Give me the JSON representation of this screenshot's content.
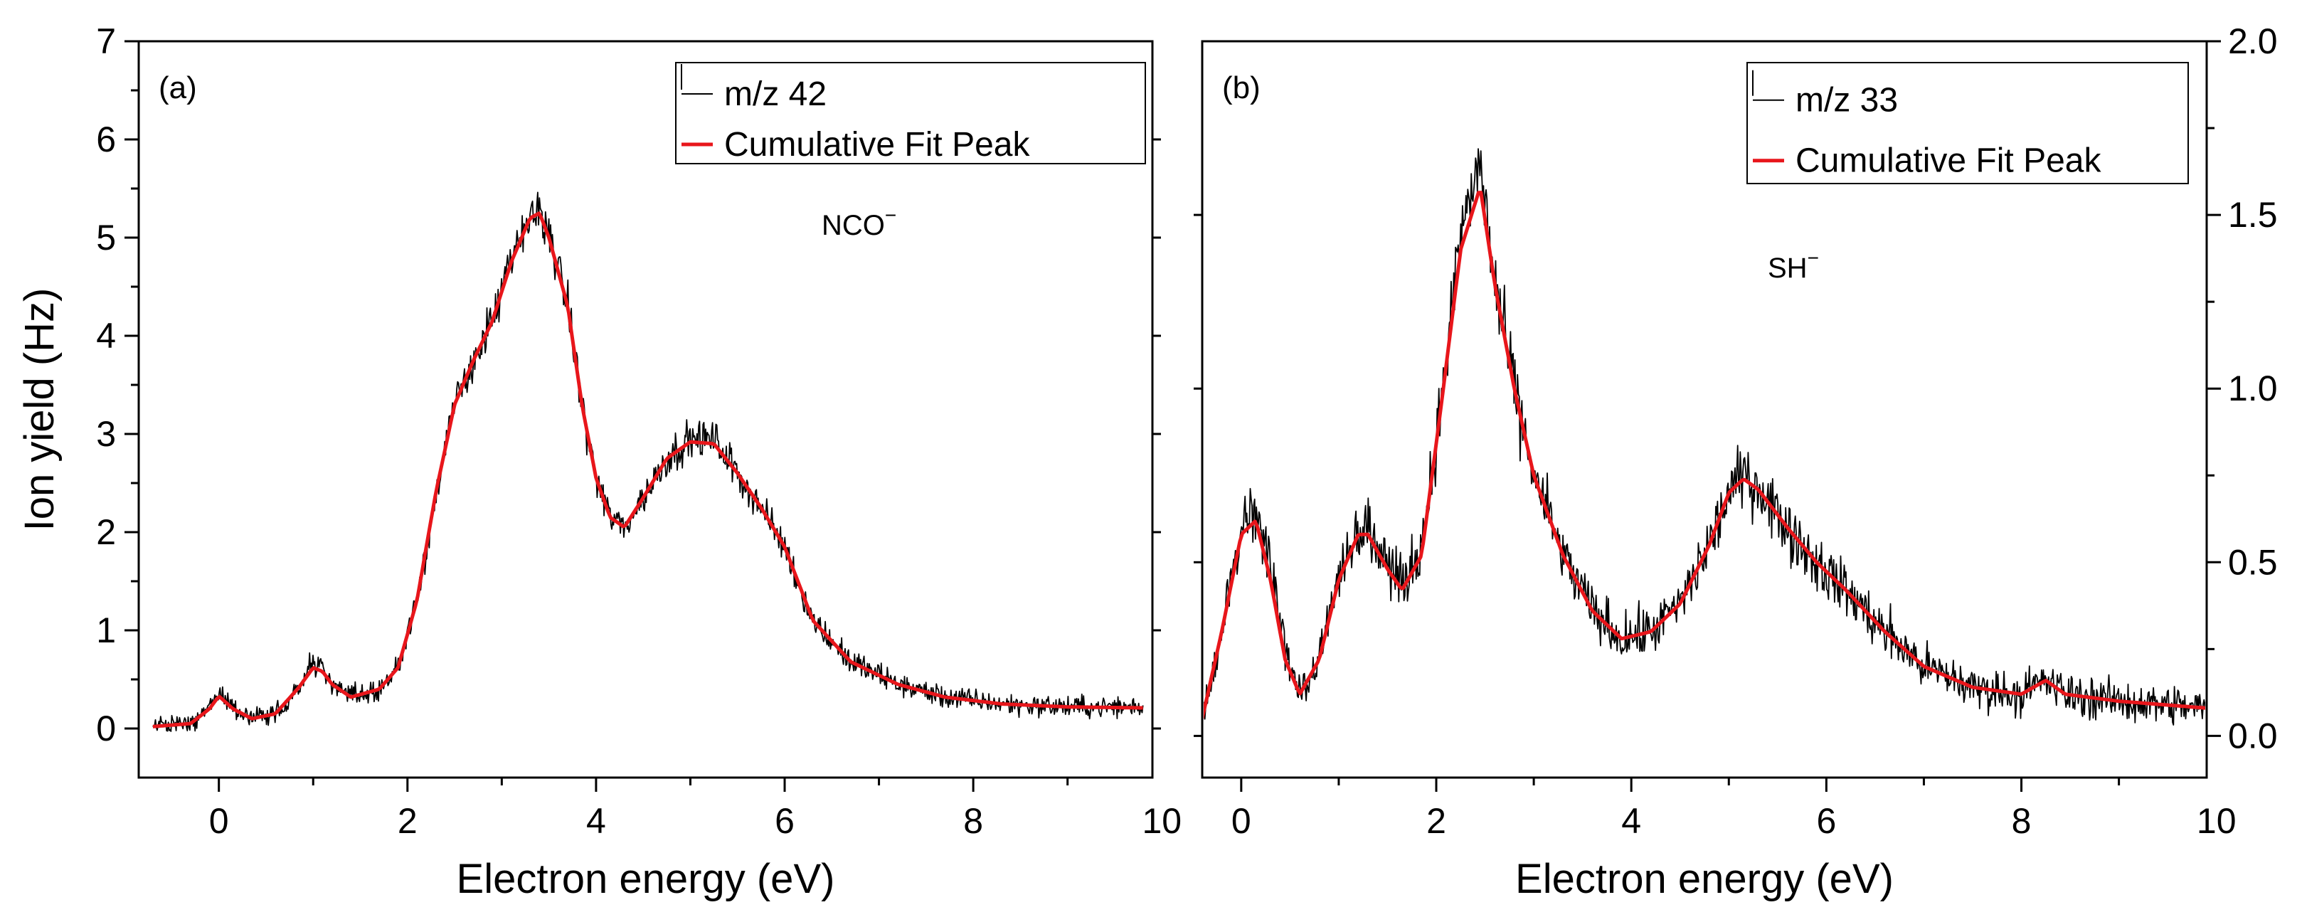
{
  "chart_data": [
    {
      "type": "line",
      "panel_label": "(a)",
      "xlabel": "Electron energy (eV)",
      "ylabel": "Ion yield (Hz)",
      "xlim": [
        -0.85,
        9.9
      ],
      "ylim": [
        -0.5,
        7
      ],
      "y_axis_side": "left",
      "xticks": [
        0,
        2,
        4,
        6,
        8,
        10
      ],
      "xtick_labels": [
        "0",
        "2",
        "4",
        "6",
        "8",
        "10"
      ],
      "yticks": [
        0,
        1,
        2,
        3,
        4,
        5,
        6,
        7
      ],
      "ytick_labels": [
        "0",
        "1",
        "2",
        "3",
        "4",
        "5",
        "6",
        "7"
      ],
      "species": {
        "base": "NCO",
        "charge": "−"
      },
      "legend": [
        "m/z 42",
        "Cumulative Fit Peak"
      ],
      "legend_position": "top-right",
      "series": [
        {
          "name": "m/z 42",
          "color": "#000000",
          "noise_amplitude": 0.14,
          "x": [
            -0.7,
            -0.3,
            -0.1,
            0.0,
            0.15,
            0.35,
            0.6,
            0.85,
            1.0,
            1.1,
            1.2,
            1.4,
            1.7,
            1.9,
            2.1,
            2.3,
            2.5,
            2.7,
            2.9,
            3.1,
            3.3,
            3.4,
            3.5,
            3.7,
            3.85,
            4.0,
            4.15,
            4.3,
            4.5,
            4.75,
            5.0,
            5.25,
            5.5,
            5.75,
            6.0,
            6.3,
            6.7,
            7.2,
            7.7,
            8.3,
            9.0,
            9.8
          ],
          "values": [
            0.03,
            0.05,
            0.2,
            0.38,
            0.22,
            0.1,
            0.15,
            0.42,
            0.68,
            0.6,
            0.45,
            0.32,
            0.4,
            0.62,
            1.35,
            2.35,
            3.3,
            3.75,
            4.15,
            4.75,
            5.2,
            5.3,
            5.05,
            4.3,
            3.3,
            2.55,
            2.15,
            2.05,
            2.35,
            2.75,
            2.95,
            2.95,
            2.6,
            2.25,
            1.85,
            1.1,
            0.68,
            0.45,
            0.32,
            0.25,
            0.22,
            0.22
          ]
        },
        {
          "name": "Cumulative Fit Peak",
          "color": "#e8161b",
          "x": [
            -0.7,
            -0.3,
            -0.1,
            0.0,
            0.15,
            0.35,
            0.6,
            0.85,
            1.0,
            1.1,
            1.2,
            1.4,
            1.7,
            1.9,
            2.1,
            2.3,
            2.5,
            2.7,
            2.9,
            3.1,
            3.3,
            3.4,
            3.5,
            3.7,
            3.85,
            4.0,
            4.15,
            4.3,
            4.5,
            4.75,
            5.0,
            5.25,
            5.5,
            5.75,
            6.0,
            6.3,
            6.7,
            7.2,
            7.7,
            8.3,
            9.0,
            9.8
          ],
          "values": [
            0.02,
            0.05,
            0.2,
            0.33,
            0.2,
            0.1,
            0.15,
            0.42,
            0.62,
            0.58,
            0.45,
            0.32,
            0.4,
            0.62,
            1.3,
            2.4,
            3.3,
            3.75,
            4.15,
            4.75,
            5.2,
            5.25,
            5.0,
            4.3,
            3.3,
            2.55,
            2.15,
            2.05,
            2.35,
            2.75,
            2.92,
            2.9,
            2.6,
            2.25,
            1.85,
            1.1,
            0.68,
            0.45,
            0.32,
            0.25,
            0.22,
            0.21
          ]
        }
      ]
    },
    {
      "type": "line",
      "panel_label": "(b)",
      "xlabel": "Electron energy (eV)",
      "ylabel": "",
      "xlim": [
        -0.4,
        9.9
      ],
      "ylim": [
        -0.12,
        2.0
      ],
      "y_axis_side": "right",
      "xticks": [
        0,
        2,
        4,
        6,
        8,
        10
      ],
      "xtick_labels": [
        "0",
        "2",
        "4",
        "6",
        "8",
        "10"
      ],
      "yticks": [
        0.0,
        0.5,
        1.0,
        1.5,
        2.0
      ],
      "ytick_labels": [
        "0.0",
        "0.5",
        "1.0",
        "1.5",
        "2.0"
      ],
      "species": {
        "base": "SH",
        "charge": "−"
      },
      "legend": [
        "m/z 33",
        "Cumulative Fit Peak"
      ],
      "legend_position": "top-right",
      "series": [
        {
          "name": "m/z 33",
          "color": "#000000",
          "noise_amplitude": 0.07,
          "x": [
            -0.4,
            -0.2,
            0.0,
            0.15,
            0.3,
            0.45,
            0.6,
            0.8,
            1.0,
            1.2,
            1.3,
            1.5,
            1.65,
            1.85,
            2.05,
            2.25,
            2.45,
            2.6,
            2.8,
            3.0,
            3.3,
            3.6,
            3.9,
            4.2,
            4.5,
            4.8,
            5.0,
            5.15,
            5.3,
            5.6,
            5.9,
            6.2,
            6.6,
            7.0,
            7.5,
            8.0,
            8.25,
            8.45,
            9.0,
            9.9
          ],
          "values": [
            0.05,
            0.3,
            0.6,
            0.65,
            0.5,
            0.25,
            0.12,
            0.22,
            0.48,
            0.6,
            0.6,
            0.5,
            0.43,
            0.55,
            0.95,
            1.45,
            1.65,
            1.3,
            1.0,
            0.75,
            0.52,
            0.36,
            0.28,
            0.3,
            0.38,
            0.55,
            0.7,
            0.75,
            0.72,
            0.6,
            0.5,
            0.42,
            0.3,
            0.2,
            0.14,
            0.12,
            0.16,
            0.12,
            0.1,
            0.08
          ]
        },
        {
          "name": "Cumulative Fit Peak",
          "color": "#e8161b",
          "x": [
            -0.4,
            -0.2,
            0.0,
            0.15,
            0.3,
            0.45,
            0.6,
            0.8,
            1.0,
            1.2,
            1.3,
            1.5,
            1.65,
            1.85,
            2.05,
            2.25,
            2.45,
            2.6,
            2.8,
            3.0,
            3.3,
            3.6,
            3.9,
            4.2,
            4.5,
            4.8,
            5.0,
            5.15,
            5.3,
            5.6,
            5.9,
            6.2,
            6.6,
            7.0,
            7.5,
            8.0,
            8.25,
            8.45,
            9.0,
            9.9
          ],
          "values": [
            0.05,
            0.3,
            0.58,
            0.62,
            0.45,
            0.22,
            0.12,
            0.22,
            0.45,
            0.58,
            0.58,
            0.48,
            0.42,
            0.52,
            0.95,
            1.4,
            1.58,
            1.3,
            1.0,
            0.75,
            0.52,
            0.36,
            0.28,
            0.3,
            0.38,
            0.55,
            0.7,
            0.74,
            0.71,
            0.6,
            0.5,
            0.42,
            0.3,
            0.2,
            0.14,
            0.12,
            0.16,
            0.12,
            0.1,
            0.08
          ]
        }
      ]
    }
  ]
}
